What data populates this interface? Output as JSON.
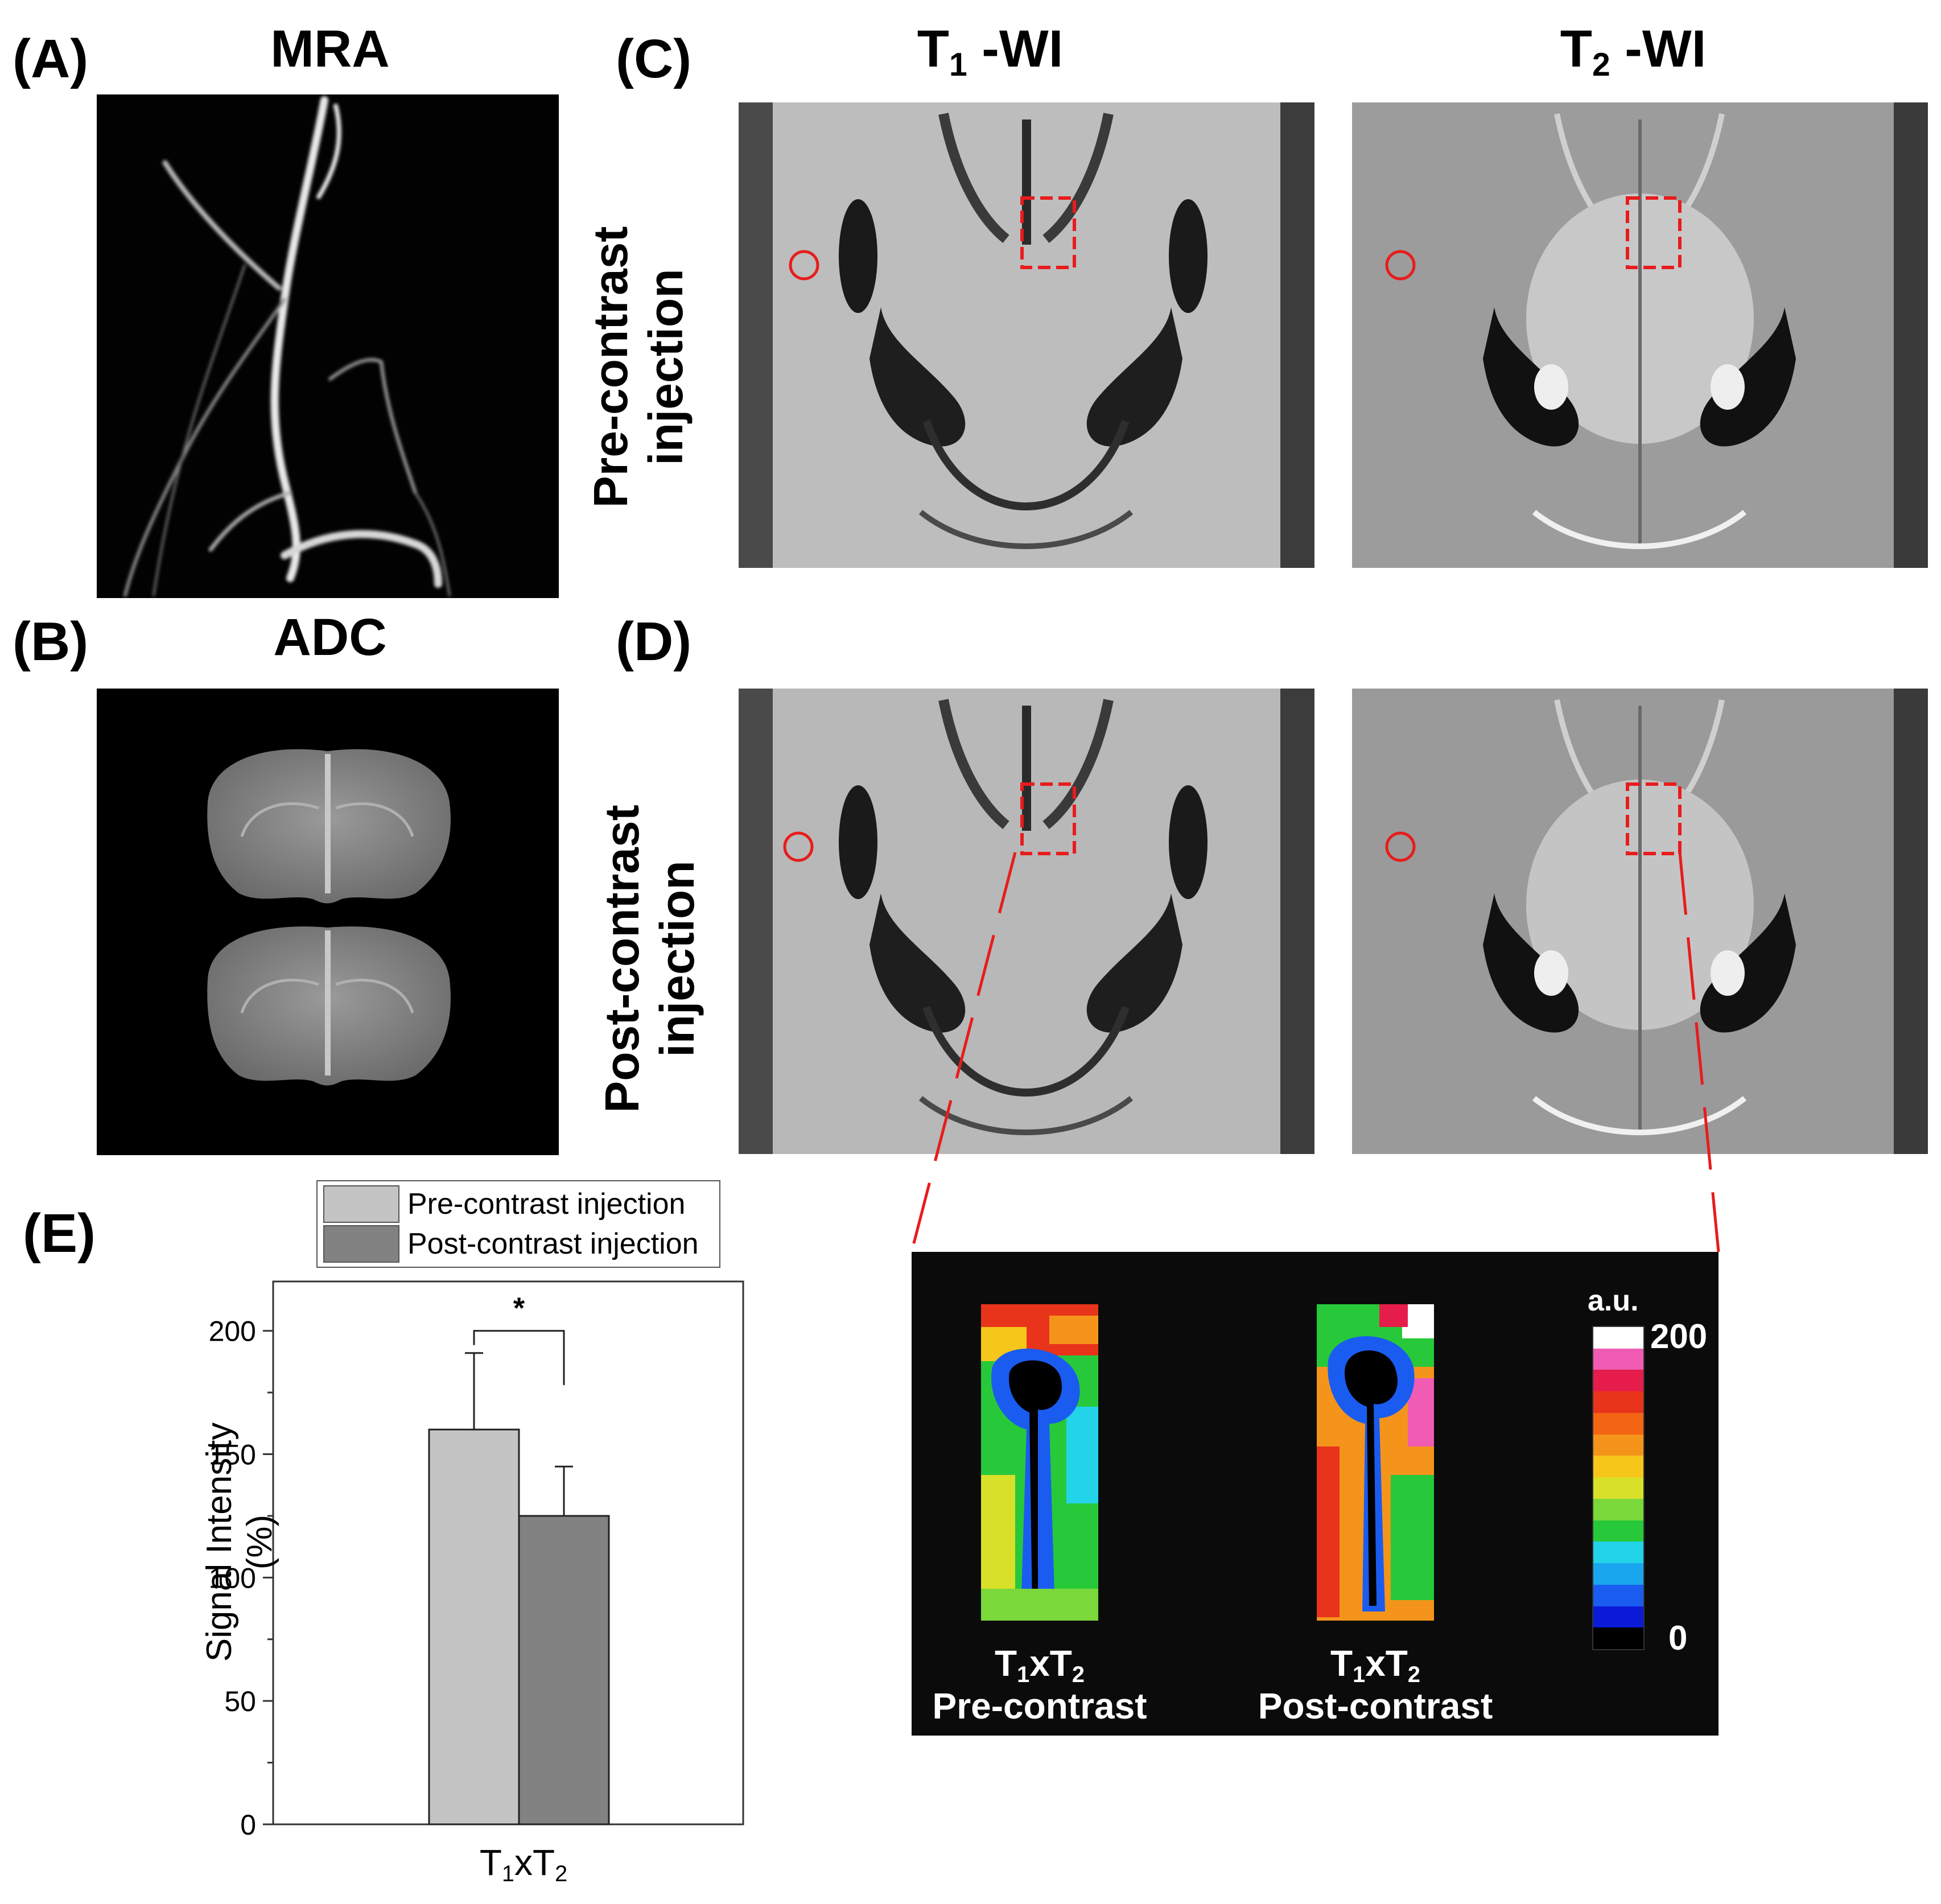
{
  "panel_labels": {
    "a": "(A)",
    "b": "(B)",
    "c": "(C)",
    "d": "(D)",
    "e": "(E)"
  },
  "titles": {
    "mra": "MRA",
    "adc": "ADC",
    "t1_prefix": "T",
    "t1_sub": "1",
    "t1_suffix": " -WI",
    "t2_prefix": "T",
    "t2_sub": "2",
    "t2_suffix": " -WI"
  },
  "row_labels": {
    "pre_line1": "Pre-contrast",
    "pre_line2": "injection",
    "post_line1": "Post-contrast",
    "post_line2": "injection"
  },
  "zoom": {
    "left_prefix": "T",
    "left_sub1": "1",
    "left_mid": "xT",
    "left_sub2": "2",
    "left_line2": "Pre-contrast",
    "right_prefix": "T",
    "right_sub1": "1",
    "right_mid": "xT",
    "right_sub2": "2",
    "right_line2": "Post-contrast",
    "colorbar_unit": "a.u.",
    "colorbar_max": "200",
    "colorbar_min": "0",
    "colorbar_colors": [
      "#000000",
      "#0a1ad8",
      "#1a5cf0",
      "#1aa6ee",
      "#23d3e8",
      "#27c93a",
      "#7ad83a",
      "#d8e02a",
      "#f6c71a",
      "#f5941b",
      "#f36413",
      "#e8341a",
      "#e61c4a",
      "#f05cb4",
      "#ffffff"
    ]
  },
  "colors": {
    "roi": "#e81c1c",
    "bar_pre": "#c4c4c4",
    "bar_post": "#828282"
  },
  "chart_data": {
    "type": "bar",
    "categories": [
      "T₁xT₂"
    ],
    "category_label": {
      "prefix": "T",
      "sub1": "1",
      "mid": "xT",
      "sub2": "2"
    },
    "series": [
      {
        "name": "Pre-contrast injection",
        "values": [
          160
        ],
        "error": [
          31
        ]
      },
      {
        "name": "Post-contrast injection",
        "values": [
          125
        ],
        "error": [
          20
        ]
      }
    ],
    "ylabel": "Signal Intensity (%)",
    "ylim": [
      0,
      220
    ],
    "yticks": [
      "0",
      "50",
      "100",
      "150",
      "200"
    ],
    "ytick_values": [
      0,
      50,
      100,
      150,
      200
    ],
    "minor_step": 25,
    "legend": "top",
    "annotation": "*"
  }
}
